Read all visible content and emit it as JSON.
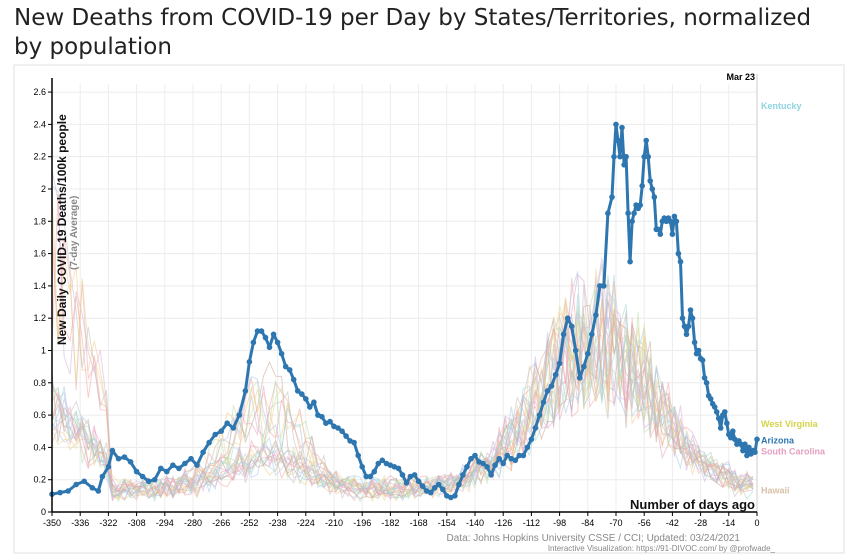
{
  "title": "New Deaths from COVID-19 per Day by States/Territories, normalized by population",
  "colors": {
    "highlight": "#2e76b0",
    "kentucky": "#8fd4e0",
    "axis": "#000000"
  },
  "footer": {
    "source": "Data: Johns Hopkins University CSSE / CCI; Updated: 03/24/2021",
    "credit": "Interactive Visualization: https://91-DIVOC.com/ by @profwade_"
  },
  "chart_data": {
    "type": "line",
    "title": "New Deaths from COVID-19 per Day by States/Territories, normalized by population",
    "xlabel": "Number of days ago",
    "ylabel": "New Daily COVID-19 Deaths/100k people",
    "ylabel_sub": "(7-day Average)",
    "xlim": [
      -350,
      0
    ],
    "ylim": [
      0,
      2.65
    ],
    "x_ticks": [
      -350,
      -336,
      -322,
      -308,
      -294,
      -280,
      -266,
      -252,
      -238,
      -224,
      -210,
      -196,
      -182,
      -168,
      -154,
      -140,
      -126,
      -112,
      -98,
      -84,
      -70,
      -56,
      -42,
      -28,
      -14,
      0
    ],
    "y_ticks": [
      0,
      0.2,
      0.4,
      0.6,
      0.8,
      1,
      1.2,
      1.4,
      1.6,
      1.8,
      2,
      2.2,
      2.4,
      2.6
    ],
    "y_tick_labels": [
      "0",
      "0.2",
      "0.4",
      "0.6",
      "0.8",
      "1",
      "1.2",
      "1.4",
      "1.6",
      "1.8",
      "2",
      "2.2",
      "2.4",
      "2.6"
    ],
    "date_marker": {
      "label": "Mar 23",
      "x": 0
    },
    "grid": true,
    "highlight_series": {
      "name": "Arizona",
      "points": [
        [
          -350,
          0.11
        ],
        [
          -346,
          0.12
        ],
        [
          -342,
          0.13
        ],
        [
          -338,
          0.17
        ],
        [
          -334,
          0.19
        ],
        [
          -330,
          0.15
        ],
        [
          -327,
          0.13
        ],
        [
          -325,
          0.22
        ],
        [
          -322,
          0.28
        ],
        [
          -320,
          0.38
        ],
        [
          -317,
          0.33
        ],
        [
          -314,
          0.34
        ],
        [
          -311,
          0.31
        ],
        [
          -308,
          0.25
        ],
        [
          -305,
          0.22
        ],
        [
          -302,
          0.19
        ],
        [
          -299,
          0.2
        ],
        [
          -296,
          0.27
        ],
        [
          -293,
          0.25
        ],
        [
          -290,
          0.29
        ],
        [
          -287,
          0.27
        ],
        [
          -284,
          0.3
        ],
        [
          -281,
          0.33
        ],
        [
          -278,
          0.29
        ],
        [
          -275,
          0.37
        ],
        [
          -272,
          0.43
        ],
        [
          -269,
          0.48
        ],
        [
          -266,
          0.5
        ],
        [
          -263,
          0.55
        ],
        [
          -260,
          0.52
        ],
        [
          -257,
          0.6
        ],
        [
          -254,
          0.75
        ],
        [
          -252,
          0.93
        ],
        [
          -250,
          1.05
        ],
        [
          -248,
          1.12
        ],
        [
          -246,
          1.12
        ],
        [
          -244,
          1.08
        ],
        [
          -242,
          1.02
        ],
        [
          -240,
          1.1
        ],
        [
          -238,
          1.05
        ],
        [
          -236,
          0.98
        ],
        [
          -234,
          0.9
        ],
        [
          -232,
          0.88
        ],
        [
          -230,
          0.82
        ],
        [
          -228,
          0.75
        ],
        [
          -226,
          0.73
        ],
        [
          -224,
          0.7
        ],
        [
          -222,
          0.65
        ],
        [
          -220,
          0.68
        ],
        [
          -218,
          0.6
        ],
        [
          -216,
          0.59
        ],
        [
          -214,
          0.55
        ],
        [
          -212,
          0.56
        ],
        [
          -210,
          0.53
        ],
        [
          -208,
          0.52
        ],
        [
          -206,
          0.5
        ],
        [
          -204,
          0.47
        ],
        [
          -202,
          0.44
        ],
        [
          -200,
          0.43
        ],
        [
          -198,
          0.35
        ],
        [
          -196,
          0.28
        ],
        [
          -194,
          0.22
        ],
        [
          -192,
          0.22
        ],
        [
          -190,
          0.25
        ],
        [
          -188,
          0.3
        ],
        [
          -186,
          0.32
        ],
        [
          -184,
          0.3
        ],
        [
          -182,
          0.29
        ],
        [
          -180,
          0.28
        ],
        [
          -178,
          0.27
        ],
        [
          -176,
          0.23
        ],
        [
          -174,
          0.18
        ],
        [
          -172,
          0.22
        ],
        [
          -170,
          0.23
        ],
        [
          -168,
          0.19
        ],
        [
          -166,
          0.16
        ],
        [
          -164,
          0.13
        ],
        [
          -162,
          0.12
        ],
        [
          -160,
          0.15
        ],
        [
          -158,
          0.17
        ],
        [
          -156,
          0.14
        ],
        [
          -154,
          0.1
        ],
        [
          -152,
          0.09
        ],
        [
          -150,
          0.1
        ],
        [
          -148,
          0.17
        ],
        [
          -146,
          0.23
        ],
        [
          -144,
          0.28
        ],
        [
          -142,
          0.33
        ],
        [
          -140,
          0.35
        ],
        [
          -138,
          0.31
        ],
        [
          -136,
          0.3
        ],
        [
          -134,
          0.28
        ],
        [
          -132,
          0.23
        ],
        [
          -130,
          0.29
        ],
        [
          -128,
          0.33
        ],
        [
          -126,
          0.3
        ],
        [
          -124,
          0.35
        ],
        [
          -122,
          0.33
        ],
        [
          -120,
          0.32
        ],
        [
          -118,
          0.35
        ],
        [
          -116,
          0.35
        ],
        [
          -114,
          0.4
        ],
        [
          -112,
          0.45
        ],
        [
          -110,
          0.52
        ],
        [
          -108,
          0.6
        ],
        [
          -106,
          0.68
        ],
        [
          -104,
          0.75
        ],
        [
          -102,
          0.78
        ],
        [
          -100,
          0.85
        ],
        [
          -98,
          0.92
        ],
        [
          -96,
          1.1
        ],
        [
          -94,
          1.2
        ],
        [
          -92,
          1.15
        ],
        [
          -90,
          1.0
        ],
        [
          -88,
          0.83
        ],
        [
          -86,
          0.9
        ],
        [
          -84,
          0.98
        ],
        [
          -82,
          1.1
        ],
        [
          -80,
          1.22
        ],
        [
          -78,
          1.4
        ],
        [
          -76,
          1.4
        ],
        [
          -74,
          1.85
        ],
        [
          -72,
          1.95
        ],
        [
          -71,
          2.2
        ],
        [
          -70,
          2.4
        ],
        [
          -69,
          2.3
        ],
        [
          -68,
          2.2
        ],
        [
          -67,
          2.38
        ],
        [
          -66,
          2.15
        ],
        [
          -65,
          2.2
        ],
        [
          -64,
          1.85
        ],
        [
          -63,
          1.55
        ],
        [
          -62,
          1.8
        ],
        [
          -61,
          1.85
        ],
        [
          -60,
          1.9
        ],
        [
          -59,
          1.88
        ],
        [
          -58,
          1.9
        ],
        [
          -57,
          2.02
        ],
        [
          -56,
          2.2
        ],
        [
          -55,
          2.3
        ],
        [
          -54,
          2.2
        ],
        [
          -53,
          2.05
        ],
        [
          -52,
          2.0
        ],
        [
          -51,
          1.95
        ],
        [
          -50,
          1.75
        ],
        [
          -49,
          1.75
        ],
        [
          -48,
          1.72
        ],
        [
          -47,
          1.8
        ],
        [
          -46,
          1.82
        ],
        [
          -45,
          1.8
        ],
        [
          -44,
          1.82
        ],
        [
          -43,
          1.8
        ],
        [
          -42,
          1.72
        ],
        [
          -41,
          1.83
        ],
        [
          -40,
          1.8
        ],
        [
          -39,
          1.6
        ],
        [
          -38,
          1.55
        ],
        [
          -37,
          1.2
        ],
        [
          -36,
          1.15
        ],
        [
          -35,
          1.1
        ],
        [
          -34,
          1.15
        ],
        [
          -33,
          1.25
        ],
        [
          -32,
          1.2
        ],
        [
          -31,
          1.05
        ],
        [
          -30,
          0.98
        ],
        [
          -29,
          1.0
        ],
        [
          -28,
          0.95
        ],
        [
          -27,
          0.94
        ],
        [
          -26,
          0.83
        ],
        [
          -25,
          0.8
        ],
        [
          -24,
          0.72
        ],
        [
          -23,
          0.7
        ],
        [
          -22,
          0.67
        ],
        [
          -21,
          0.65
        ],
        [
          -20,
          0.62
        ],
        [
          -19,
          0.58
        ],
        [
          -18,
          0.52
        ],
        [
          -17,
          0.6
        ],
        [
          -16,
          0.62
        ],
        [
          -15,
          0.55
        ],
        [
          -14,
          0.48
        ],
        [
          -13,
          0.46
        ],
        [
          -12,
          0.5
        ],
        [
          -11,
          0.45
        ],
        [
          -10,
          0.42
        ],
        [
          -9,
          0.44
        ],
        [
          -8,
          0.42
        ],
        [
          -7,
          0.38
        ],
        [
          -6,
          0.42
        ],
        [
          -5,
          0.35
        ],
        [
          -4,
          0.4
        ],
        [
          -3,
          0.36
        ],
        [
          -2,
          0.38
        ],
        [
          -1,
          0.37
        ],
        [
          0,
          0.45
        ]
      ]
    },
    "end_labels": [
      {
        "name": "Kentucky",
        "y": 2.52,
        "color": "#8fd4e0"
      },
      {
        "name": "Arizona",
        "y": 0.45,
        "color": "#2e76b0"
      },
      {
        "name": "West Virginia",
        "y": 0.55,
        "color": "#d4d44a"
      },
      {
        "name": "South Carolina",
        "y": 0.38,
        "color": "#e4a0c0"
      },
      {
        "name": "Hawaii",
        "y": 0.14,
        "color": "#d8c0a8"
      }
    ]
  }
}
